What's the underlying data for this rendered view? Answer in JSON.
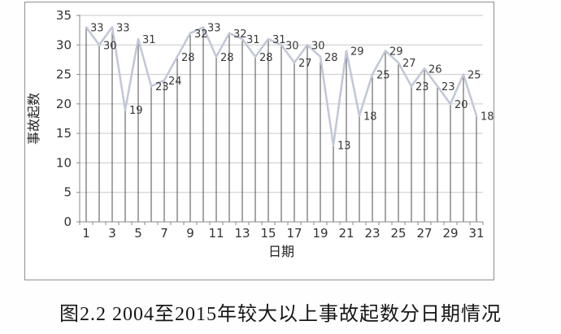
{
  "caption": "图2.2 2004至2015年较大以上事故起数分日期情况",
  "chart_data": {
    "type": "line",
    "title": "",
    "xlabel": "日期",
    "ylabel": "事故起数",
    "categories": [
      1,
      2,
      3,
      4,
      5,
      6,
      7,
      8,
      9,
      10,
      11,
      12,
      13,
      14,
      15,
      16,
      17,
      18,
      19,
      20,
      21,
      22,
      23,
      24,
      25,
      26,
      27,
      28,
      29,
      30,
      31
    ],
    "values": [
      33,
      30,
      33,
      19,
      31,
      23,
      24,
      28,
      32,
      33,
      28,
      32,
      31,
      28,
      31,
      30,
      27,
      30,
      28,
      13,
      29,
      18,
      25,
      29,
      27,
      23,
      26,
      23,
      20,
      25,
      18
    ],
    "x_tick_labels": [
      "1",
      "3",
      "5",
      "7",
      "9",
      "11",
      "13",
      "15",
      "17",
      "19",
      "21",
      "23",
      "25",
      "27",
      "29",
      "31"
    ],
    "x_tick_positions": [
      1,
      3,
      5,
      7,
      9,
      11,
      13,
      15,
      17,
      19,
      21,
      23,
      25,
      27,
      29,
      31
    ],
    "y_ticks": [
      0,
      5,
      10,
      15,
      20,
      25,
      30,
      35
    ],
    "ylim": [
      0,
      35
    ],
    "grid": "horizontal",
    "legend": "none",
    "data_labels": "right-of-point",
    "drop_lines": true,
    "colors": {
      "series_line": "#c3c8d8",
      "drop_line": "#4d4d4d",
      "grid_line": "#c9c9c9",
      "axis_line": "#8a8a8a",
      "data_label": "#383838",
      "tick_label": "#333333",
      "axis_title": "#222222"
    }
  }
}
